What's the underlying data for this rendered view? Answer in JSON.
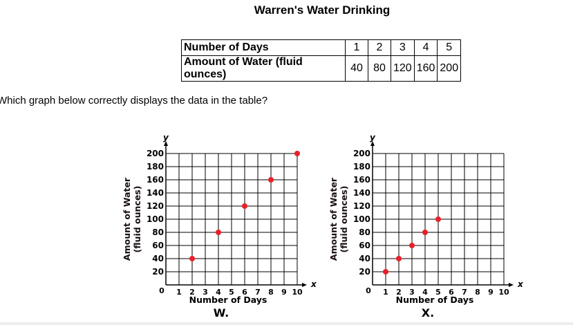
{
  "title": "Warren's Water Drinking",
  "table": {
    "rows": [
      {
        "label": "Number of Days",
        "values": [
          "1",
          "2",
          "3",
          "4",
          "5"
        ]
      },
      {
        "label": "Amount of Water (fluid ounces)",
        "values": [
          "40",
          "80",
          "120",
          "160",
          "200"
        ]
      }
    ]
  },
  "question": "Which graph below correctly displays the data in the table?",
  "chart_data": [
    {
      "type": "scatter",
      "choice_label": "W.",
      "xlabel": "Number of Days",
      "ylabel": [
        "Amount of Water",
        "(fluid ounces)"
      ],
      "x_axis_letter": "x",
      "y_axis_letter": "y",
      "xlim": [
        0,
        10
      ],
      "ylim": [
        0,
        200
      ],
      "x_ticks": [
        "1",
        "2",
        "3",
        "4",
        "5",
        "6",
        "7",
        "8",
        "9",
        "10"
      ],
      "y_ticks": [
        "20",
        "40",
        "60",
        "80",
        "100",
        "120",
        "140",
        "160",
        "180",
        "200"
      ],
      "origin_label": "0",
      "grid": true,
      "point_color": "#e8202a",
      "points": [
        {
          "x": 2,
          "y": 40
        },
        {
          "x": 4,
          "y": 80
        },
        {
          "x": 6,
          "y": 120
        },
        {
          "x": 8,
          "y": 160
        },
        {
          "x": 10,
          "y": 200
        }
      ]
    },
    {
      "type": "scatter",
      "choice_label": "X.",
      "xlabel": "Number of Days",
      "ylabel": [
        "Amount of Water",
        "(fluid ounces)"
      ],
      "x_axis_letter": "x",
      "y_axis_letter": "y",
      "xlim": [
        0,
        10
      ],
      "ylim": [
        0,
        200
      ],
      "x_ticks": [
        "1",
        "2",
        "3",
        "4",
        "5",
        "6",
        "7",
        "8",
        "9",
        "10"
      ],
      "y_ticks": [
        "20",
        "40",
        "60",
        "80",
        "100",
        "120",
        "140",
        "160",
        "180",
        "200"
      ],
      "origin_label": "0",
      "grid": true,
      "point_color": "#e8202a",
      "points": [
        {
          "x": 1,
          "y": 20
        },
        {
          "x": 2,
          "y": 40
        },
        {
          "x": 3,
          "y": 60
        },
        {
          "x": 4,
          "y": 80
        },
        {
          "x": 5,
          "y": 100
        }
      ]
    }
  ]
}
